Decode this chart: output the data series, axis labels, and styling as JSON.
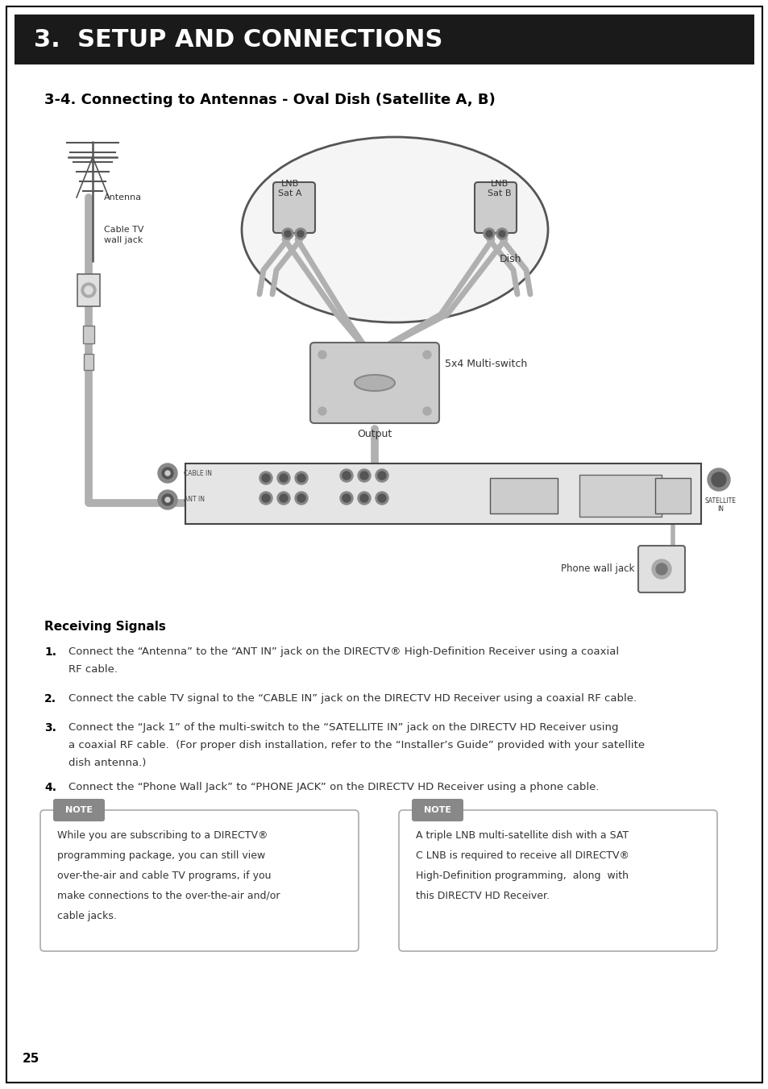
{
  "bg_color": "#ffffff",
  "header_bg": "#1a1a1a",
  "header_text": "3.  SETUP AND CONNECTIONS",
  "header_text_color": "#ffffff",
  "subtitle": "3-4. Connecting to Antennas - Oval Dish (Satellite A, B)",
  "receiving_signals_title": "Receiving Signals",
  "step1_num": "1.",
  "step1_line1": "Connect the “Antenna” to the “ANT IN” jack on the DIRECTV® High-Definition Receiver using a coaxial",
  "step1_line2": "RF cable.",
  "step2_num": "2.",
  "step2_line1": "Connect the cable TV signal to the “CABLE IN” jack on the DIRECTV HD Receiver using a coaxial RF cable.",
  "step3_num": "3.",
  "step3_line1": "Connect the “Jack 1” of the multi-switch to the “SATELLITE IN” jack on the DIRECTV HD Receiver using",
  "step3_line2": "a coaxial RF cable.  (For proper dish installation, refer to the “Installer’s Guide” provided with your satellite",
  "step3_line3": "dish antenna.)",
  "step4_num": "4.",
  "step4_line1": "Connect the “Phone Wall Jack” to “PHONE JACK” on the DIRECTV HD Receiver using a phone cable.",
  "note1_title": "NOTE",
  "note1_line1": "While you are subscribing to a DIRECTV®",
  "note1_line2": "programming package, you can still view",
  "note1_line3": "over-the-air and cable TV programs, if you",
  "note1_line4": "make connections to the over-the-air and/or",
  "note1_line5": "cable jacks.",
  "note2_title": "NOTE",
  "note2_line1": "A triple LNB multi-satellite dish with a SAT",
  "note2_line2": "C LNB is required to receive all DIRECTV®",
  "note2_line3": "High-Definition programming,  along  with",
  "note2_line4": "this DIRECTV HD Receiver.",
  "page_number": "25",
  "cable_color": "#b0b0b0",
  "cable_lw": 7,
  "thin_cable_color": "#b0b0b0",
  "thin_cable_lw": 4,
  "receiver_fill": "#e5e5e5",
  "receiver_edge": "#555555",
  "note_badge_color": "#888888",
  "note_edge_color": "#aaaaaa"
}
